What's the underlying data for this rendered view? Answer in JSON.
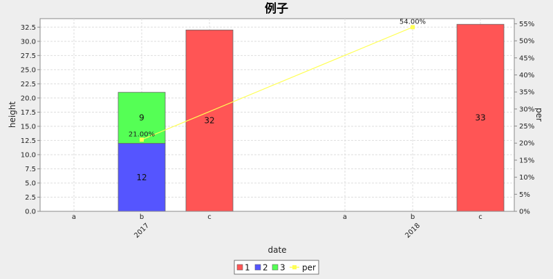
{
  "chart_data": {
    "type": "bar",
    "title": "例子",
    "xlabel": "date",
    "ylabel": "height",
    "y2label": "per",
    "ylim": [
      0,
      34
    ],
    "y2lim": [
      0,
      56.5
    ],
    "y_ticks": [
      "0.0",
      "2.5",
      "5.0",
      "7.5",
      "10.0",
      "12.5",
      "15.0",
      "17.5",
      "20.0",
      "22.5",
      "25.0",
      "27.5",
      "30.0",
      "32.5"
    ],
    "y_tick_values": [
      0,
      2.5,
      5,
      7.5,
      10,
      12.5,
      15,
      17.5,
      20,
      22.5,
      25,
      27.5,
      30,
      32.5
    ],
    "y2_ticks": [
      "0%",
      "5%",
      "10%",
      "15%",
      "20%",
      "25%",
      "30%",
      "35%",
      "40%",
      "45%",
      "50%",
      "55%"
    ],
    "y2_tick_values": [
      0,
      5,
      10,
      15,
      20,
      25,
      30,
      35,
      40,
      45,
      50,
      55
    ],
    "groups": [
      {
        "name": "2017",
        "categories": [
          "a",
          "b",
          "c"
        ]
      },
      {
        "name": "2018",
        "categories": [
          "a",
          "b",
          "c"
        ]
      }
    ],
    "series": [
      {
        "name": "1",
        "color": "#ff5555",
        "values": [
          [
            0,
            0,
            32
          ],
          [
            0,
            0,
            33
          ]
        ]
      },
      {
        "name": "2",
        "color": "#5555ff",
        "values": [
          [
            0,
            12,
            0
          ],
          [
            0,
            0,
            0
          ]
        ]
      },
      {
        "name": "3",
        "color": "#55ff55",
        "values": [
          [
            0,
            9,
            0
          ],
          [
            0,
            0,
            0
          ]
        ]
      }
    ],
    "line_series": {
      "name": "per",
      "color": "#ffff55",
      "points": [
        {
          "group": 0,
          "category": 1,
          "value": 21.0,
          "label": "21.00%"
        },
        {
          "group": 1,
          "category": 1,
          "value": 54.0,
          "label": "54.00%"
        }
      ]
    },
    "legend": [
      "1",
      "2",
      "3",
      "per"
    ],
    "legend_position": "bottom",
    "grid": true
  }
}
